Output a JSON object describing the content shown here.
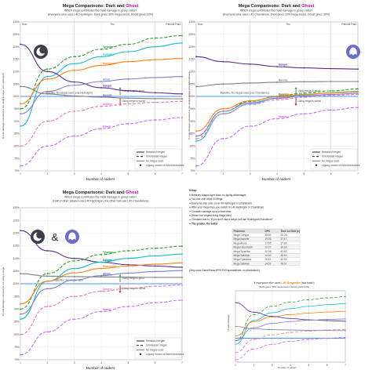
{
  "colors": {
    "dark": "#2d2d2d",
    "ghost": "#cc00cc",
    "hydreigon": "#1a73e8",
    "chandelure": "#1a73e8",
    "dragonite": "#e08000",
    "good_marker": "#2e9e2e",
    "bad_marker": "#d01010"
  },
  "icons": {
    "dark": "dark-type-icon",
    "ghost": "ghost-type-icon",
    "legend_released": "solid-line",
    "legend_unreleased": "dashed-line",
    "legend_no_mega": "solid-thin-line",
    "legend_legacy": "star-marker"
  },
  "panels": [
    {
      "title_prefix": "Mega Comparisons: ",
      "title_dark": "Dark",
      "title_and": " and ",
      "title_ghost": "Ghost",
      "subtitle": "Which mega contributes the most damage in group raids?",
      "subtitle2": "(Everyone else uses L40 Hydreigon, Dark gives 30% mega boost, Ghost gives 10%)",
      "zones": [
        "Solo",
        "Trio",
        "Remote Raid"
      ],
      "ylabel": "% total damage compared to not using a mega (one Hydreigon)",
      "xlabel": "Number of raiders",
      "legend": {
        "released": "Released megas",
        "unreleased": "Unreleased megas",
        "no_mega": "No megas used",
        "legacy": "Legacy moves or ticket-exclusives"
      },
      "baseline_text": "Baseline: No megas used (one Hydreigon)",
      "good_text": "Using mega is good",
      "bad_text": "Using mega is worse"
    },
    {
      "title_prefix": "Mega Comparisons: ",
      "title_dark": "Dark",
      "title_and": " and ",
      "title_ghost": "Ghost",
      "subtitle": "Which mega contributes the most damage in group raids?",
      "subtitle2": "(Everyone else uses L40 Chandelure, Dark gives 10% mega boost, Ghost gives 30%)",
      "zones": [
        "Solo",
        "Trio",
        "Remote Raid"
      ],
      "ylabel": "% total damage compared to not using a mega (one Chandelure)",
      "xlabel": "Number of raiders",
      "legend": {
        "released": "Released megas",
        "unreleased": "Unreleased megas",
        "no_mega": "No megas used",
        "legacy": "Legacy moves or ticket-exclusives"
      },
      "baseline_text": "Baseline: No megas used (one Chandelure)",
      "good_text": "Using mega is good",
      "bad_text": "Using mega is worse"
    },
    {
      "title_prefix": "Mega Comparisons: ",
      "title_dark": "Dark",
      "title_and": " and ",
      "title_ghost": "Ghost",
      "subtitle": "Which mega contributes the most damage in group raids?",
      "subtitle2": "(Half of other players use L40 Hydreigon, the other half use L40 Chandelure)",
      "zones": [],
      "ylabel": "% total damage compared to not using a mega",
      "xlabel": "Number of raiders",
      "legend": {
        "released": "Released megas",
        "unreleased": "Unreleased megas",
        "no_mega": "No megas used",
        "legacy": "Legacy moves or ticket-exclusives"
      },
      "baseline_text": "Baseline: No megas used",
      "good_text": "Using mega is good",
      "bad_text": "Using mega is worse",
      "amp": "&"
    }
  ],
  "setup": {
    "heading": "Setup:",
    "lines": [
      "Arbitrary dragon-type boss, no typing advantages",
      "You use one Level 40 Mega",
      "Everyone else uses Level 40 Hydreigon or Chandelure",
      "After your mega dies, you switch to L40 Hydreigon or Chandelure",
      "Consider damage up to a fixed time",
      "(When the longest-living mega dies)",
      "Compare that to \"if you don't use a mega, but use Hydreigon/Chandelure\"",
      "The greater, the better"
    ],
    "table_headers": [
      "Pokemon",
      "DPS",
      "Time on field (s)"
    ],
    "table_rows": [
      [
        "Mega Gengar",
        "35.50",
        "25.20"
      ],
      [
        "Mega Banette",
        "19.95",
        "37.17"
      ],
      [
        "Mega Absol",
        "17.55",
        "37.80"
      ],
      [
        "Mega Houndoom",
        "22.27",
        "30.90"
      ],
      [
        "Mega Tyranitar",
        "20.98",
        "41.60"
      ],
      [
        "Mega Sableye",
        "14.60",
        "38.60"
      ],
      [
        "Mega Gyarados",
        "20.61",
        "42.50"
      ],
      [
        "Mega Sableye",
        "14.52",
        "38.67"
      ]
    ],
    "note": "(Only uses GamePress DPS/TDO spreadsheet, no simulations)"
  },
  "mini": {
    "title_prefix": "If everyone else uses ",
    "title_highlight": "L40 Dragonite",
    "title_suffix": " (aka trash)",
    "subtitle": "(Dark gives 30% mega boost, Ghost gives 10%)",
    "ylabel": "% total damage",
    "xlabel": "Number of raiders"
  },
  "chart_data": [
    {
      "type": "line",
      "x": [
        1,
        2,
        3,
        4,
        5,
        6,
        7
      ],
      "xlim": [
        1,
        7
      ],
      "ylim": [
        70,
        130
      ],
      "yticks": [
        70,
        75,
        80,
        85,
        90,
        95,
        100,
        105,
        110,
        115,
        120,
        125,
        130
      ],
      "ytick_labels": [
        "70%",
        "75%",
        "80%",
        "85%",
        "90%",
        "95%",
        "100%",
        "105%",
        "110%",
        "115%",
        "120%",
        "125%",
        "130%"
      ],
      "series": [
        {
          "name": "Tyranitar",
          "style": "dashed",
          "color": "#2ca02c",
          "values": [
            95,
            111,
            116,
            119,
            121,
            123.5,
            124.5
          ]
        },
        {
          "name": "Gyarados",
          "style": "solid",
          "color": "#17becf",
          "values": [
            88,
            108,
            113.2,
            116,
            118,
            120,
            121.5
          ]
        },
        {
          "name": "Houndoom",
          "style": "solid",
          "color": "#ff7f0e",
          "values": [
            97,
            107,
            110.5,
            112.5,
            114,
            114.8,
            115.3
          ]
        },
        {
          "name": "Gengar",
          "style": "solid",
          "color": "#5b2c8c",
          "values": [
            121,
            110,
            105.8,
            103.5,
            102.3,
            101.5,
            101
          ]
        },
        {
          "name": "Absol",
          "style": "solid",
          "color": "#7f7fd0",
          "values": [
            93,
            102,
            104.5,
            106,
            107,
            107.6,
            108
          ]
        },
        {
          "name": "Banette",
          "style": "solid",
          "color": "#7f7f7f",
          "values": [
            104,
            101,
            100.2,
            99.7,
            99.3,
            99.1,
            99
          ]
        },
        {
          "name": "Sableye",
          "style": "dashed",
          "color": "#e377c2",
          "values": [
            80,
            90,
            94,
            96,
            97,
            97.6,
            98
          ]
        },
        {
          "name": "Mawile",
          "style": "dashed",
          "color": "#cc66ff",
          "values": [
            72,
            80,
            84,
            87,
            89,
            90.5,
            91.5
          ]
        }
      ]
    },
    {
      "type": "line",
      "x": [
        1,
        2,
        3,
        4,
        5,
        6,
        7
      ],
      "xlim": [
        1,
        7
      ],
      "ylim": [
        70,
        130
      ],
      "yticks": [
        70,
        75,
        80,
        85,
        90,
        95,
        100,
        105,
        110,
        115,
        120,
        125,
        130
      ],
      "ytick_labels": [
        "70%",
        "75%",
        "80%",
        "85%",
        "90%",
        "95%",
        "100%",
        "105%",
        "110%",
        "115%",
        "120%",
        "125%",
        "130%"
      ],
      "series": [
        {
          "name": "Gengar",
          "style": "solid",
          "color": "#5b2c8c",
          "values": [
            116,
            114,
            113,
            112,
            111.5,
            111.2,
            111
          ]
        },
        {
          "name": "Banette",
          "style": "solid",
          "color": "#7f7f7f",
          "values": [
            104,
            105,
            105.4,
            105.7,
            105.9,
            106,
            106
          ]
        },
        {
          "name": "Tyranitar",
          "style": "dashed",
          "color": "#2ca02c",
          "values": [
            84,
            94,
            98,
            100,
            101.3,
            102.2,
            103
          ]
        },
        {
          "name": "Gyarados",
          "style": "solid",
          "color": "#17becf",
          "values": [
            82,
            93,
            97,
            99.3,
            100.6,
            101.5,
            102
          ]
        },
        {
          "name": "Houndoom",
          "style": "solid",
          "color": "#ff7f0e",
          "values": [
            86,
            95,
            98.2,
            99.8,
            100.8,
            101.4,
            101.8
          ]
        },
        {
          "name": "Absol",
          "style": "solid",
          "color": "#7f7fd0",
          "values": [
            84,
            94,
            97.5,
            99.2,
            100.2,
            100.8,
            101.2
          ]
        },
        {
          "name": "Sableye",
          "style": "dashed",
          "color": "#e377c2",
          "values": [
            83,
            93,
            96.8,
            98.6,
            99.7,
            100.4,
            100.8
          ]
        },
        {
          "name": "Mawile",
          "style": "dashed",
          "color": "#cc66ff",
          "values": [
            72,
            83,
            88,
            91,
            93,
            94.5,
            95.5
          ]
        }
      ]
    },
    {
      "type": "line",
      "x": [
        1,
        2,
        3,
        4,
        5,
        6,
        7
      ],
      "xlim": [
        1,
        7
      ],
      "ylim": [
        70,
        130
      ],
      "yticks": [
        70,
        75,
        80,
        85,
        90,
        95,
        100,
        105,
        110,
        115,
        120,
        125,
        130
      ],
      "ytick_labels": [
        "70%",
        "75%",
        "80%",
        "85%",
        "90%",
        "95%",
        "100%",
        "105%",
        "110%",
        "115%",
        "120%",
        "125%",
        "130%"
      ],
      "series": [
        {
          "name": "Gengar",
          "style": "solid",
          "color": "#5b2c8c",
          "values": [
            121,
            113,
            110,
            108.5,
            107.5,
            107,
            106.5
          ]
        },
        {
          "name": "Tyranitar",
          "style": "dashed",
          "color": "#2ca02c",
          "values": [
            90,
            104,
            109,
            111.5,
            113,
            114,
            114.8
          ]
        },
        {
          "name": "Gyarados",
          "style": "solid",
          "color": "#17becf",
          "values": [
            86,
            101,
            106,
            108.5,
            110,
            111,
            111.7
          ]
        },
        {
          "name": "Houndoom",
          "style": "solid",
          "color": "#ff7f0e",
          "values": [
            92,
            101,
            104.3,
            106,
            107,
            107.7,
            108.2
          ]
        },
        {
          "name": "Banette",
          "style": "solid",
          "color": "#7f7f7f",
          "values": [
            104,
            103,
            102.8,
            102.7,
            102.6,
            102.5,
            102.5
          ]
        },
        {
          "name": "Absol",
          "style": "solid",
          "color": "#7f7fd0",
          "values": [
            88,
            98,
            101.5,
            103.2,
            104.2,
            104.8,
            105.2
          ]
        },
        {
          "name": "Sableye",
          "style": "dashed",
          "color": "#e377c2",
          "values": [
            80,
            91,
            95,
            97,
            98.2,
            99,
            99.5
          ]
        },
        {
          "name": "Mawile",
          "style": "dashed",
          "color": "#cc66ff",
          "values": [
            72,
            81,
            86,
            89,
            91,
            92.5,
            93.5
          ]
        }
      ]
    },
    {
      "type": "line",
      "x": [
        1,
        2,
        3,
        4,
        5,
        6,
        7
      ],
      "xlim": [
        1,
        7
      ],
      "ylim": [
        80,
        140
      ],
      "series": [
        {
          "name": "Tyranitar",
          "style": "dashed",
          "color": "#2ca02c",
          "values": [
            98,
            120,
            127,
            130.5,
            132.5,
            134,
            135
          ]
        },
        {
          "name": "Gyarados",
          "style": "solid",
          "color": "#17becf",
          "values": [
            95,
            115,
            121.5,
            125,
            127,
            128.3,
            129.2
          ]
        },
        {
          "name": "Houndoom",
          "style": "solid",
          "color": "#ff7f0e",
          "values": [
            102,
            114,
            118,
            120,
            121.3,
            122.1,
            122.7
          ]
        },
        {
          "name": "Gengar",
          "style": "solid",
          "color": "#5b2c8c",
          "values": [
            130,
            122,
            118.5,
            116.7,
            115.6,
            114.9,
            114.4
          ]
        },
        {
          "name": "Absol",
          "style": "solid",
          "color": "#7f7fd0",
          "values": [
            98,
            109,
            112.5,
            114.2,
            115.2,
            115.8,
            116.3
          ]
        },
        {
          "name": "Banette",
          "style": "solid",
          "color": "#7f7f7f",
          "values": [
            110,
            108,
            107.3,
            107,
            106.8,
            106.6,
            106.5
          ]
        },
        {
          "name": "Sableye",
          "style": "dashed",
          "color": "#e377c2",
          "values": [
            88,
            99,
            103,
            105,
            106.2,
            107,
            107.5
          ]
        },
        {
          "name": "Mawile",
          "style": "dashed",
          "color": "#cc66ff",
          "values": [
            82,
            91,
            95,
            97.5,
            99,
            100,
            100.8
          ]
        }
      ]
    }
  ]
}
